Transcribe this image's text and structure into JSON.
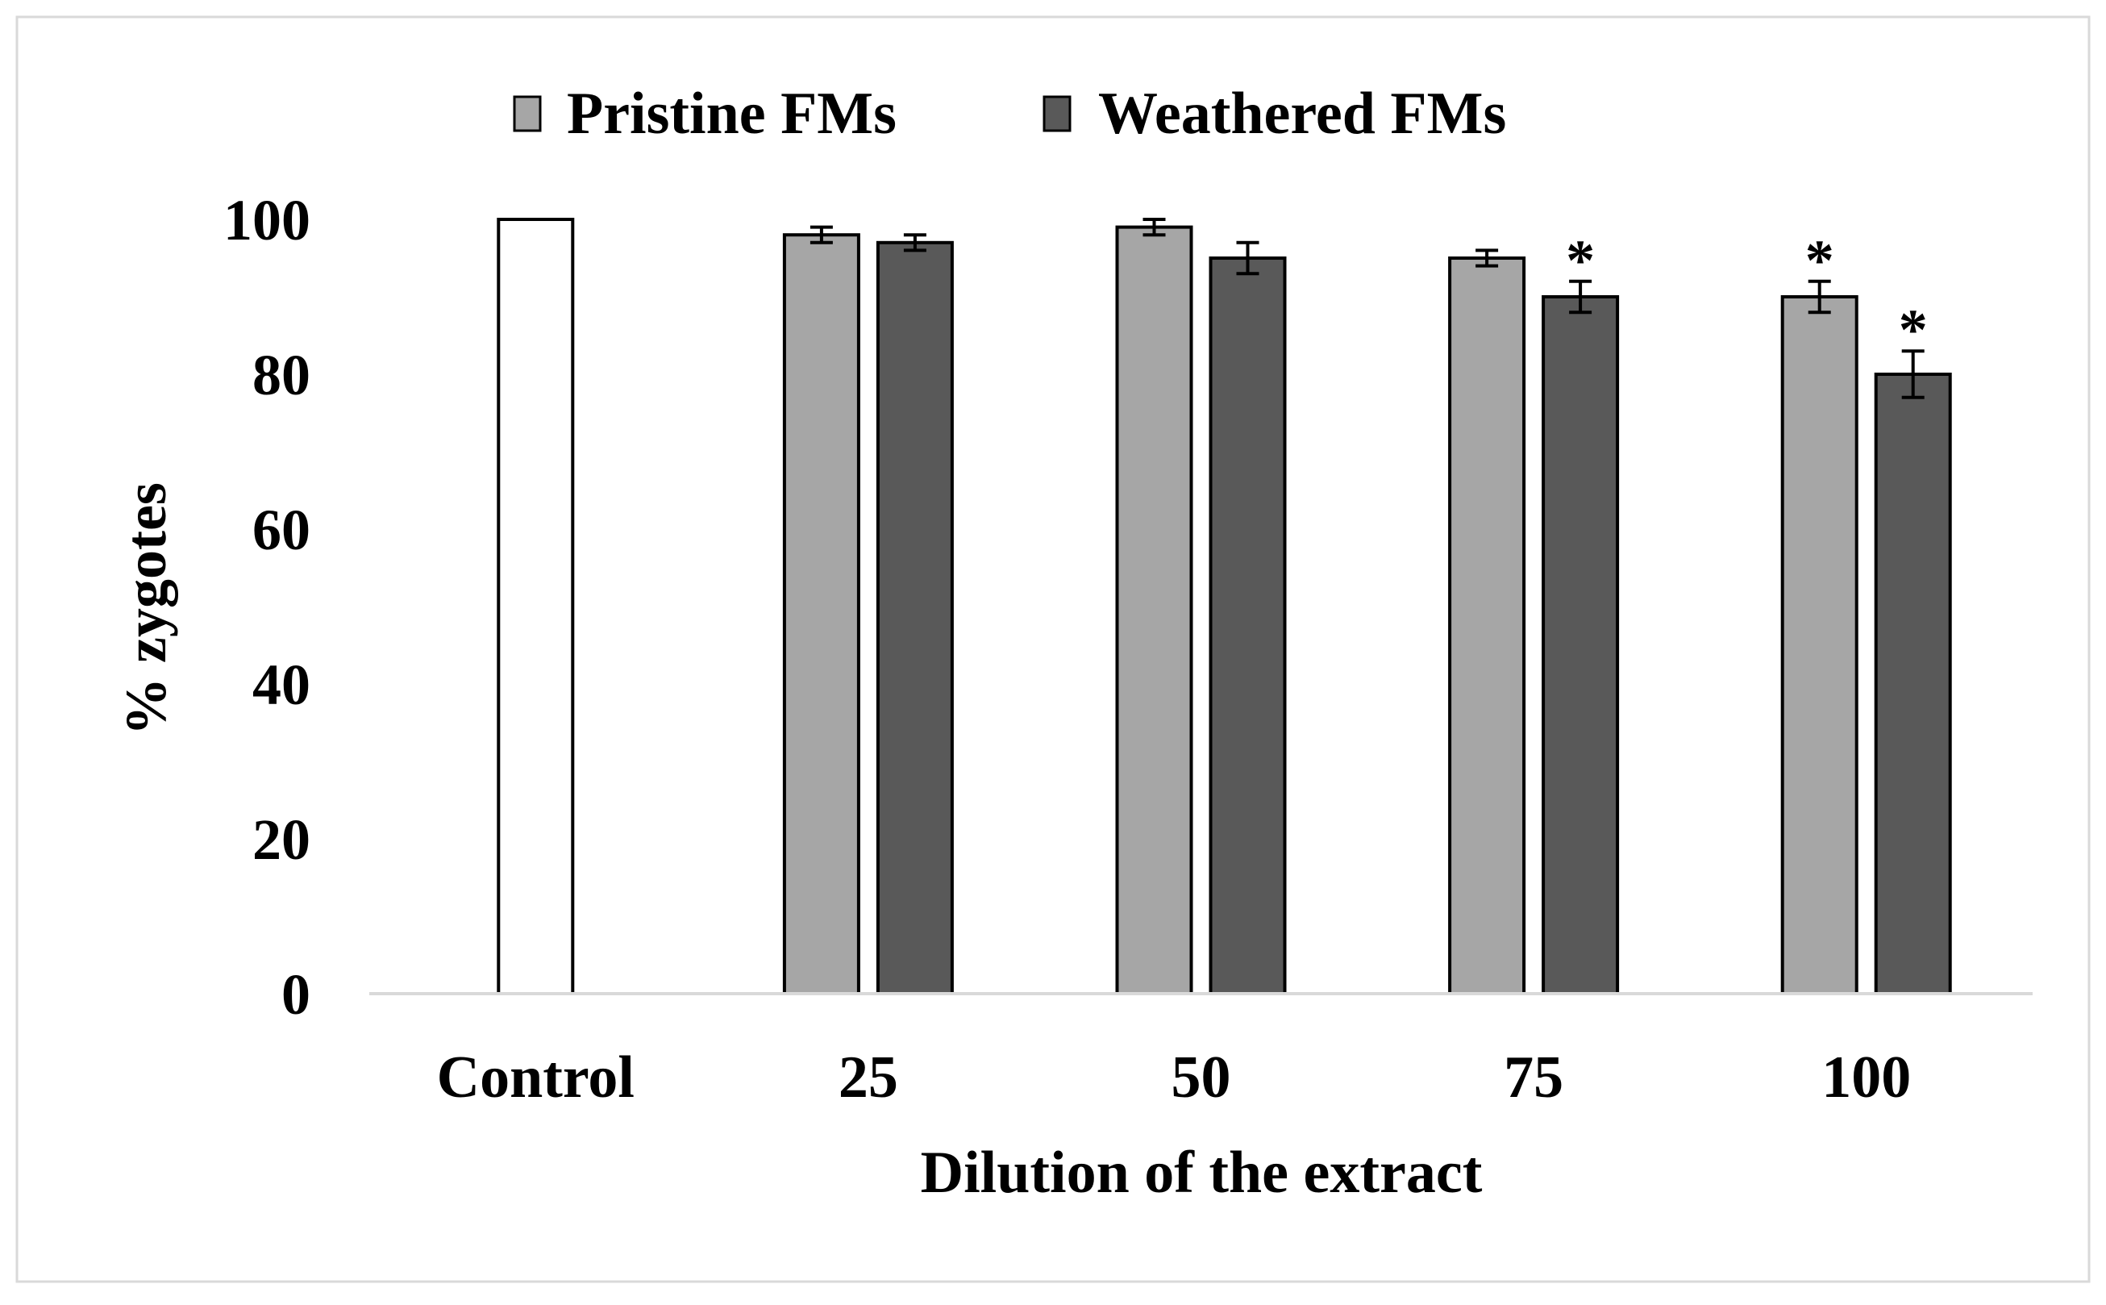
{
  "chart_data": {
    "type": "bar",
    "title": "",
    "xlabel": "Dilution of the extract",
    "ylabel": "% zygotes",
    "ylim": [
      0,
      100
    ],
    "yticks": [
      0,
      20,
      40,
      60,
      80,
      100
    ],
    "grid": false,
    "legend_position": "top",
    "categories": [
      "Control",
      "25",
      "50",
      "75",
      "100"
    ],
    "control": {
      "name": "Control",
      "value": 100,
      "color": "#ffffff"
    },
    "series": [
      {
        "name": "Pristine FMs",
        "color": "#a6a6a6",
        "values": [
          null,
          98,
          99,
          95,
          90
        ],
        "errors": [
          null,
          1,
          1,
          1,
          2
        ],
        "significant": [
          false,
          false,
          false,
          false,
          true
        ]
      },
      {
        "name": "Weathered FMs",
        "color": "#595959",
        "values": [
          null,
          97,
          95,
          90,
          80
        ],
        "errors": [
          null,
          1,
          2,
          2,
          3
        ],
        "significant": [
          false,
          false,
          false,
          true,
          true
        ]
      }
    ],
    "significance_marker": "*"
  }
}
